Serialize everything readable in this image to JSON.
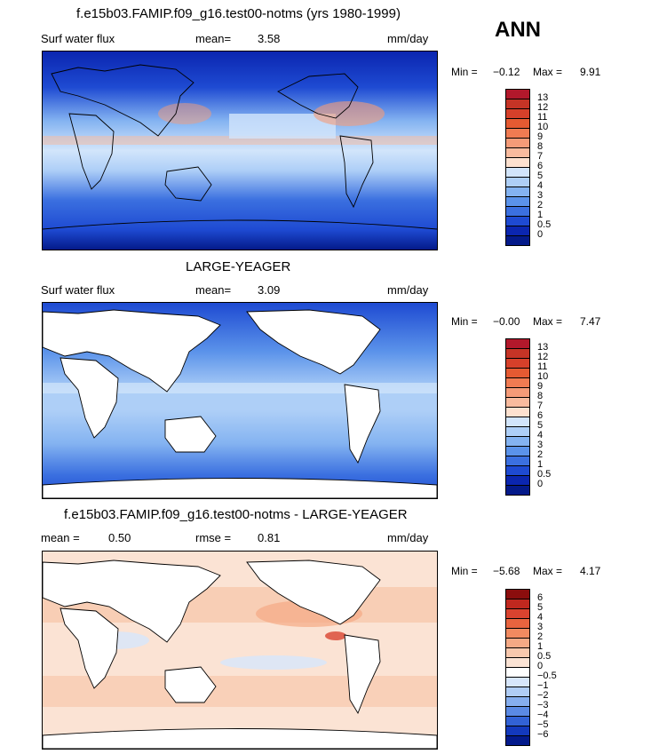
{
  "season": "ANN",
  "panels": [
    {
      "title": "f.e15b03.FAMIP.f09_g16.test00-notms (yrs 1980-1999)",
      "variable": "Surf water flux",
      "stat1_label": "mean=",
      "stat1_value": "3.58",
      "stat2_label": "",
      "stat2_value": "",
      "units": "mm/day",
      "min_label": "Min =",
      "min_value": "−0.12",
      "max_label": "Max =",
      "max_value": "9.91",
      "colorbar_labels": [
        "13",
        "12",
        "11",
        "10",
        "9",
        "8",
        "7",
        "6",
        "5",
        "4",
        "3",
        "2",
        "1",
        "0.5",
        "0"
      ],
      "colorbar_colors": [
        "#b2182b",
        "#c53426",
        "#d6402a",
        "#e55a32",
        "#f07b52",
        "#f59b78",
        "#f9bb9e",
        "#fde1cf",
        "#d2e5fb",
        "#aecff7",
        "#84b3f1",
        "#5b93ea",
        "#3b70e0",
        "#1e4ad2",
        "#0b26b0",
        "#041a8a"
      ],
      "land": "no"
    },
    {
      "title": "LARGE-YEAGER",
      "variable": "Surf water flux",
      "stat1_label": "mean=",
      "stat1_value": "3.09",
      "stat2_label": "",
      "stat2_value": "",
      "units": "mm/day",
      "min_label": "Min =",
      "min_value": "−0.00",
      "max_label": "Max =",
      "max_value": "7.47",
      "colorbar_labels": [
        "13",
        "12",
        "11",
        "10",
        "9",
        "8",
        "7",
        "6",
        "5",
        "4",
        "3",
        "2",
        "1",
        "0.5",
        "0"
      ],
      "colorbar_colors": [
        "#b2182b",
        "#c53426",
        "#d6402a",
        "#e55a32",
        "#f07b52",
        "#f59b78",
        "#f9bb9e",
        "#fde1cf",
        "#d2e5fb",
        "#aecff7",
        "#84b3f1",
        "#5b93ea",
        "#3b70e0",
        "#1e4ad2",
        "#0b26b0",
        "#041a8a"
      ],
      "land": "yes"
    },
    {
      "title": "f.e15b03.FAMIP.f09_g16.test00-notms - LARGE-YEAGER",
      "variable": "",
      "stat1_label": "mean =",
      "stat1_value": "0.50",
      "stat2_label": "rmse =",
      "stat2_value": "0.81",
      "units": "mm/day",
      "min_label": "Min =",
      "min_value": "−5.68",
      "max_label": "Max =",
      "max_value": "4.17",
      "colorbar_labels": [
        "6",
        "5",
        "4",
        "3",
        "2",
        "1",
        "0.5",
        "0",
        "−0.5",
        "−1",
        "−2",
        "−3",
        "−4",
        "−5",
        "−6"
      ],
      "colorbar_colors": [
        "#8b0d0d",
        "#c0281f",
        "#d9432f",
        "#e8643f",
        "#f18a60",
        "#f5a985",
        "#f8c8ad",
        "#fbe3d4",
        "#ffffff",
        "#d7e6fb",
        "#b0cdf5",
        "#86aeee",
        "#5b8ae4",
        "#3262d6",
        "#1339bd",
        "#031a8c"
      ],
      "land": "yes"
    }
  ]
}
